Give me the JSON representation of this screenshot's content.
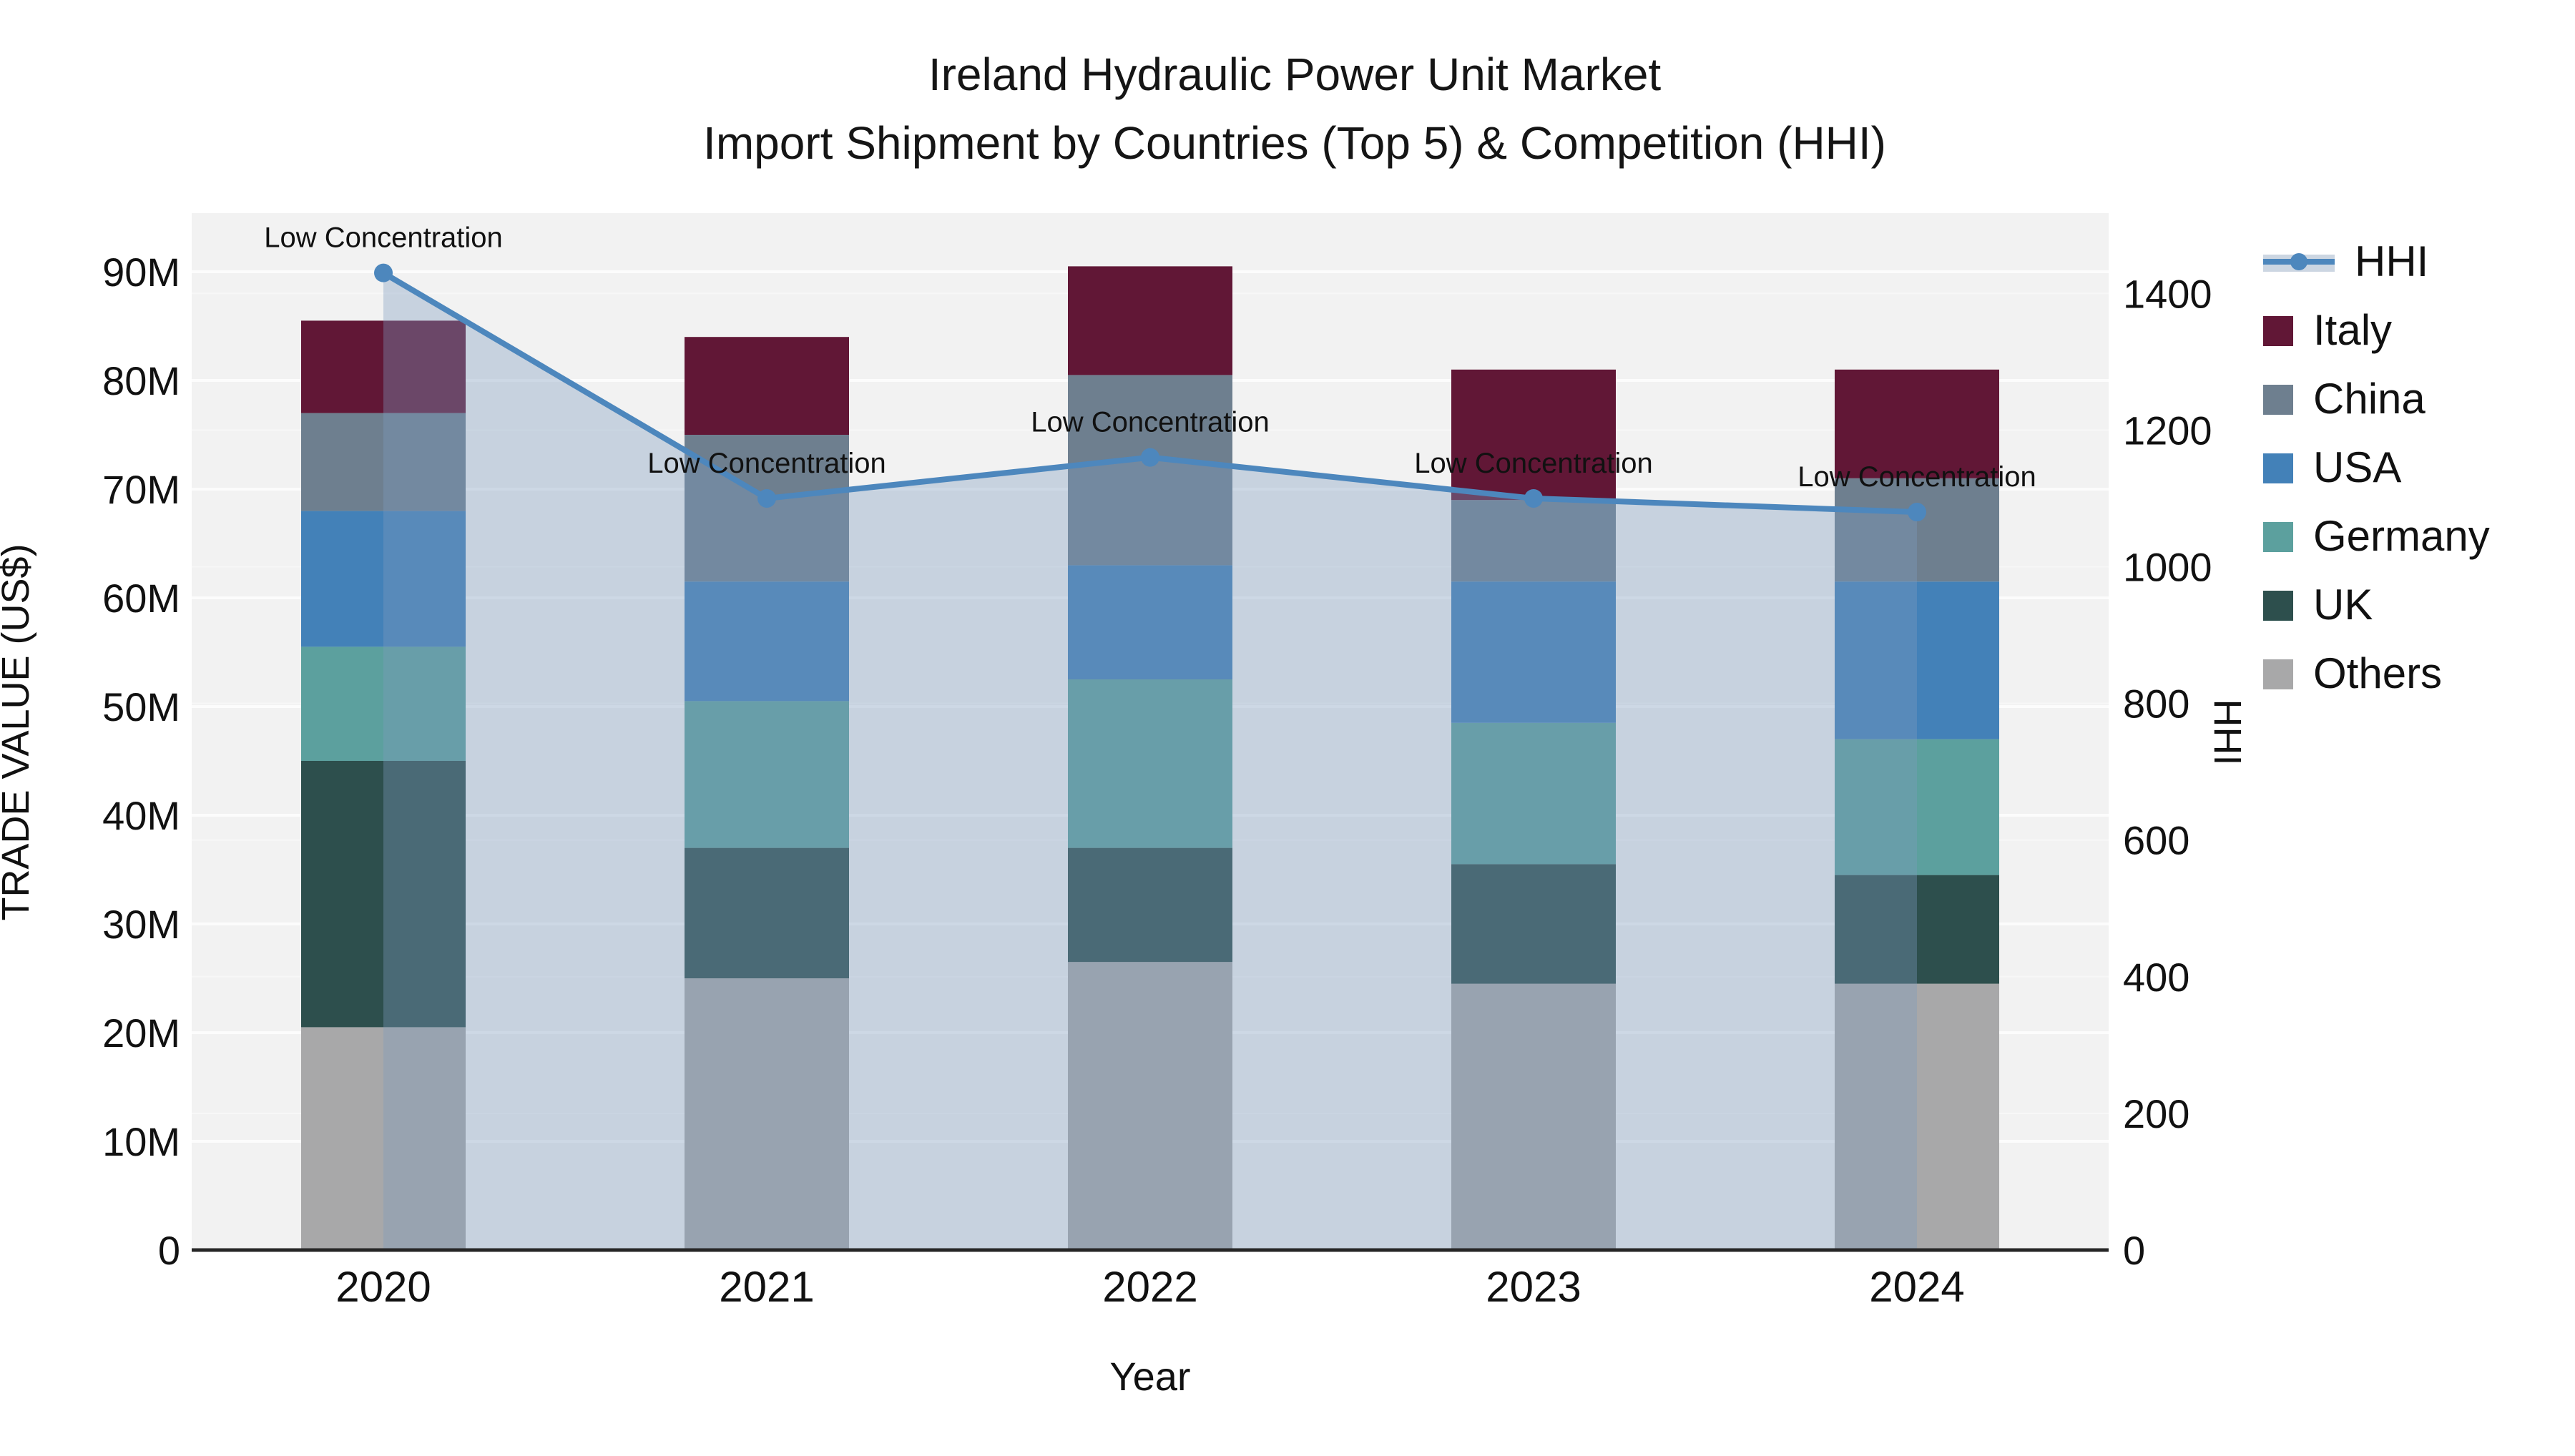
{
  "title": {
    "line1": "Ireland Hydraulic Power Unit Market",
    "line2": "Import Shipment by Countries (Top 5) & Competition (HHI)"
  },
  "axes": {
    "x_label": "Year",
    "y_left_label": "TRADE VALUE (US$)",
    "y_right_label": "HHI",
    "y_left_ticks": [
      "0",
      "10M",
      "20M",
      "30M",
      "40M",
      "50M",
      "60M",
      "70M",
      "80M",
      "90M"
    ],
    "y_right_ticks": [
      "0",
      "200",
      "400",
      "600",
      "800",
      "1000",
      "1200",
      "1400"
    ],
    "x_ticks": [
      "2020",
      "2021",
      "2022",
      "2023",
      "2024"
    ]
  },
  "legend": [
    {
      "label": "HHI",
      "type": "line",
      "color": "#4d87bd"
    },
    {
      "label": "Italy",
      "type": "box",
      "color": "#611736"
    },
    {
      "label": "China",
      "type": "box",
      "color": "#6e7f8f"
    },
    {
      "label": "USA",
      "type": "box",
      "color": "#4381b8"
    },
    {
      "label": "Germany",
      "type": "box",
      "color": "#5ca09e"
    },
    {
      "label": "UK",
      "type": "box",
      "color": "#2d4f4d"
    },
    {
      "label": "Others",
      "type": "box",
      "color": "#a8a8a9"
    }
  ],
  "chart_data": {
    "type": "bar",
    "subtype": "stacked-bars-with-line",
    "title": "Ireland Hydraulic Power Unit Market — Import Shipment by Countries (Top 5) & Competition (HHI)",
    "xlabel": "Year",
    "ylabel_left": "TRADE VALUE (US$)",
    "ylabel_right": "HHI",
    "categories": [
      "2020",
      "2021",
      "2022",
      "2023",
      "2024"
    ],
    "value_unit": "M US$",
    "ylim_left": [
      0,
      95
    ],
    "ylim_right": [
      0,
      1517
    ],
    "grid": true,
    "legend_position": "right",
    "series": [
      {
        "name": "Others",
        "color": "#a8a8a9",
        "values": [
          20.5,
          25.0,
          26.5,
          24.5,
          24.5
        ]
      },
      {
        "name": "UK",
        "color": "#2d4f4d",
        "values": [
          24.5,
          12.0,
          10.5,
          11.0,
          10.0
        ]
      },
      {
        "name": "Germany",
        "color": "#5ca09e",
        "values": [
          10.5,
          13.5,
          15.5,
          13.0,
          12.5
        ]
      },
      {
        "name": "USA",
        "color": "#4381b8",
        "values": [
          12.5,
          11.0,
          10.5,
          13.0,
          14.5
        ]
      },
      {
        "name": "China",
        "color": "#6e7f8f",
        "values": [
          9.0,
          13.5,
          17.5,
          7.5,
          9.5
        ]
      },
      {
        "name": "Italy",
        "color": "#611736",
        "values": [
          8.5,
          9.0,
          10.0,
          12.0,
          10.0
        ]
      }
    ],
    "totals": [
      85.5,
      84.0,
      90.5,
      81.0,
      81.0
    ],
    "hhi": {
      "name": "HHI",
      "color": "#4d87bd",
      "area_color": "rgba(125,155,190,0.37)",
      "values": [
        1430,
        1100,
        1160,
        1100,
        1080
      ],
      "annotations": [
        "Low Concentration",
        "Low Concentration",
        "Low Concentration",
        "Low Concentration",
        "Low Concentration"
      ]
    }
  }
}
